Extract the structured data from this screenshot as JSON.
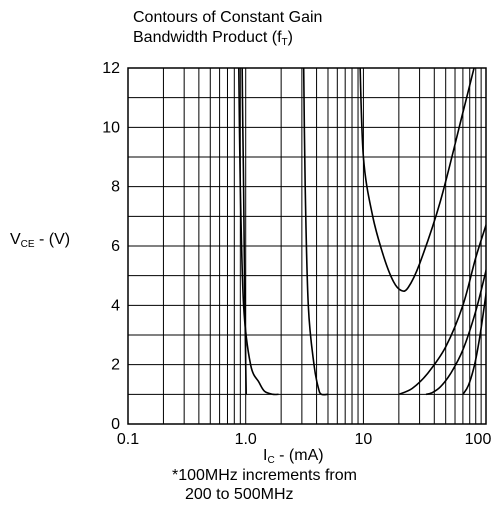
{
  "chart_data": {
    "type": "line",
    "title_line1": "Contours of Constant Gain",
    "title_line2_prefix": "Bandwidth Product (f",
    "title_line2_sub": "T",
    "title_line2_suffix": ")",
    "ylabel_main": "V",
    "ylabel_sub": "CE",
    "ylabel_unit": " - (V)",
    "xlabel_main": "I",
    "xlabel_sub": "C",
    "xlabel_unit": " - (mA)",
    "note_line1": "*100MHz increments from",
    "note_line2": "200 to 500MHz",
    "x_scale": "log",
    "xlim": [
      0.1,
      110
    ],
    "ylim": [
      0,
      12
    ],
    "x_ticks": [
      {
        "value": 0.1,
        "label": "0.1"
      },
      {
        "value": 1,
        "label": "1.0"
      },
      {
        "value": 10,
        "label": "10"
      },
      {
        "value": 100,
        "label": "100"
      }
    ],
    "y_ticks": [
      {
        "value": 0,
        "label": "0"
      },
      {
        "value": 2,
        "label": "2"
      },
      {
        "value": 4,
        "label": "4"
      },
      {
        "value": 6,
        "label": "6"
      },
      {
        "value": 8,
        "label": "8"
      },
      {
        "value": 10,
        "label": "10"
      },
      {
        "value": 12,
        "label": "12"
      }
    ],
    "grid": true,
    "series": [
      {
        "points": [
          [
            0.93,
            12.6
          ],
          [
            0.945,
            10
          ],
          [
            0.96,
            8
          ],
          [
            0.97,
            6
          ],
          [
            0.985,
            4
          ],
          [
            1.0,
            2
          ],
          [
            1.01,
            1.0
          ]
        ]
      },
      {
        "points": [
          [
            0.87,
            12.6
          ],
          [
            0.9,
            8
          ],
          [
            0.96,
            4
          ],
          [
            1.1,
            2
          ],
          [
            1.3,
            1.4
          ],
          [
            1.45,
            1.1
          ],
          [
            1.7,
            1.0
          ],
          [
            1.9,
            1.0
          ]
        ]
      },
      {
        "points": [
          [
            3.1,
            12.6
          ],
          [
            3.2,
            8
          ],
          [
            3.4,
            4
          ],
          [
            3.8,
            2
          ],
          [
            4.15,
            1.2
          ],
          [
            4.4,
            1.0
          ],
          [
            5.0,
            1.0
          ]
        ]
      },
      {
        "points": [
          [
            9.3,
            12.6
          ],
          [
            10,
            9
          ],
          [
            12,
            7
          ],
          [
            15,
            5.6
          ],
          [
            18,
            4.8
          ],
          [
            21,
            4.5
          ],
          [
            24,
            4.6
          ],
          [
            30,
            5.4
          ],
          [
            45,
            7.5
          ],
          [
            70,
            10.5
          ],
          [
            95,
            12.6
          ]
        ]
      },
      {
        "points": [
          [
            20,
            1.0
          ],
          [
            26,
            1.2
          ],
          [
            35,
            1.7
          ],
          [
            50,
            2.6
          ],
          [
            70,
            4
          ],
          [
            90,
            5.6
          ],
          [
            112,
            6.8
          ]
        ]
      },
      {
        "points": [
          [
            34,
            1.0
          ],
          [
            38,
            1.05
          ],
          [
            45,
            1.25
          ],
          [
            55,
            1.7
          ],
          [
            70,
            2.5
          ],
          [
            90,
            3.8
          ],
          [
            112,
            5.3
          ]
        ]
      },
      {
        "points": [
          [
            70,
            1.0
          ],
          [
            78,
            1.3
          ],
          [
            88,
            2.0
          ],
          [
            98,
            3.0
          ],
          [
            112,
            4.6
          ]
        ]
      }
    ]
  },
  "colors": {
    "line": "#000000",
    "grid": "#000000",
    "background": "#ffffff"
  }
}
